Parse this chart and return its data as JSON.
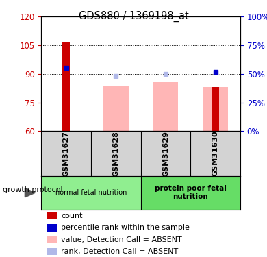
{
  "title": "GDS880 / 1369198_at",
  "samples": [
    "GSM31627",
    "GSM31628",
    "GSM31629",
    "GSM31630"
  ],
  "ylim": [
    60,
    120
  ],
  "ylim_right": [
    0,
    100
  ],
  "yticks_left": [
    60,
    75,
    90,
    105,
    120
  ],
  "yticks_right": [
    0,
    25,
    50,
    75,
    100
  ],
  "red_bars": [
    107,
    null,
    null,
    83
  ],
  "pink_bars": [
    null,
    84,
    86,
    83
  ],
  "blue_dots": [
    93,
    null,
    null,
    91
  ],
  "lightblue_dots": [
    null,
    89,
    90,
    null
  ],
  "legend_items": [
    {
      "label": "count",
      "color": "#cc0000"
    },
    {
      "label": "percentile rank within the sample",
      "color": "#0000cc"
    },
    {
      "label": "value, Detection Call = ABSENT",
      "color": "#ffb6b6"
    },
    {
      "label": "rank, Detection Call = ABSENT",
      "color": "#b0b8e8"
    }
  ],
  "left_tick_color": "#cc0000",
  "right_tick_color": "#0000cc",
  "group1_label": "normal fetal nutrition",
  "group2_label": "protein poor fetal\nnutrition",
  "group1_color": "#90ee90",
  "group2_color": "#66dd66",
  "growth_protocol_label": "growth protocol"
}
